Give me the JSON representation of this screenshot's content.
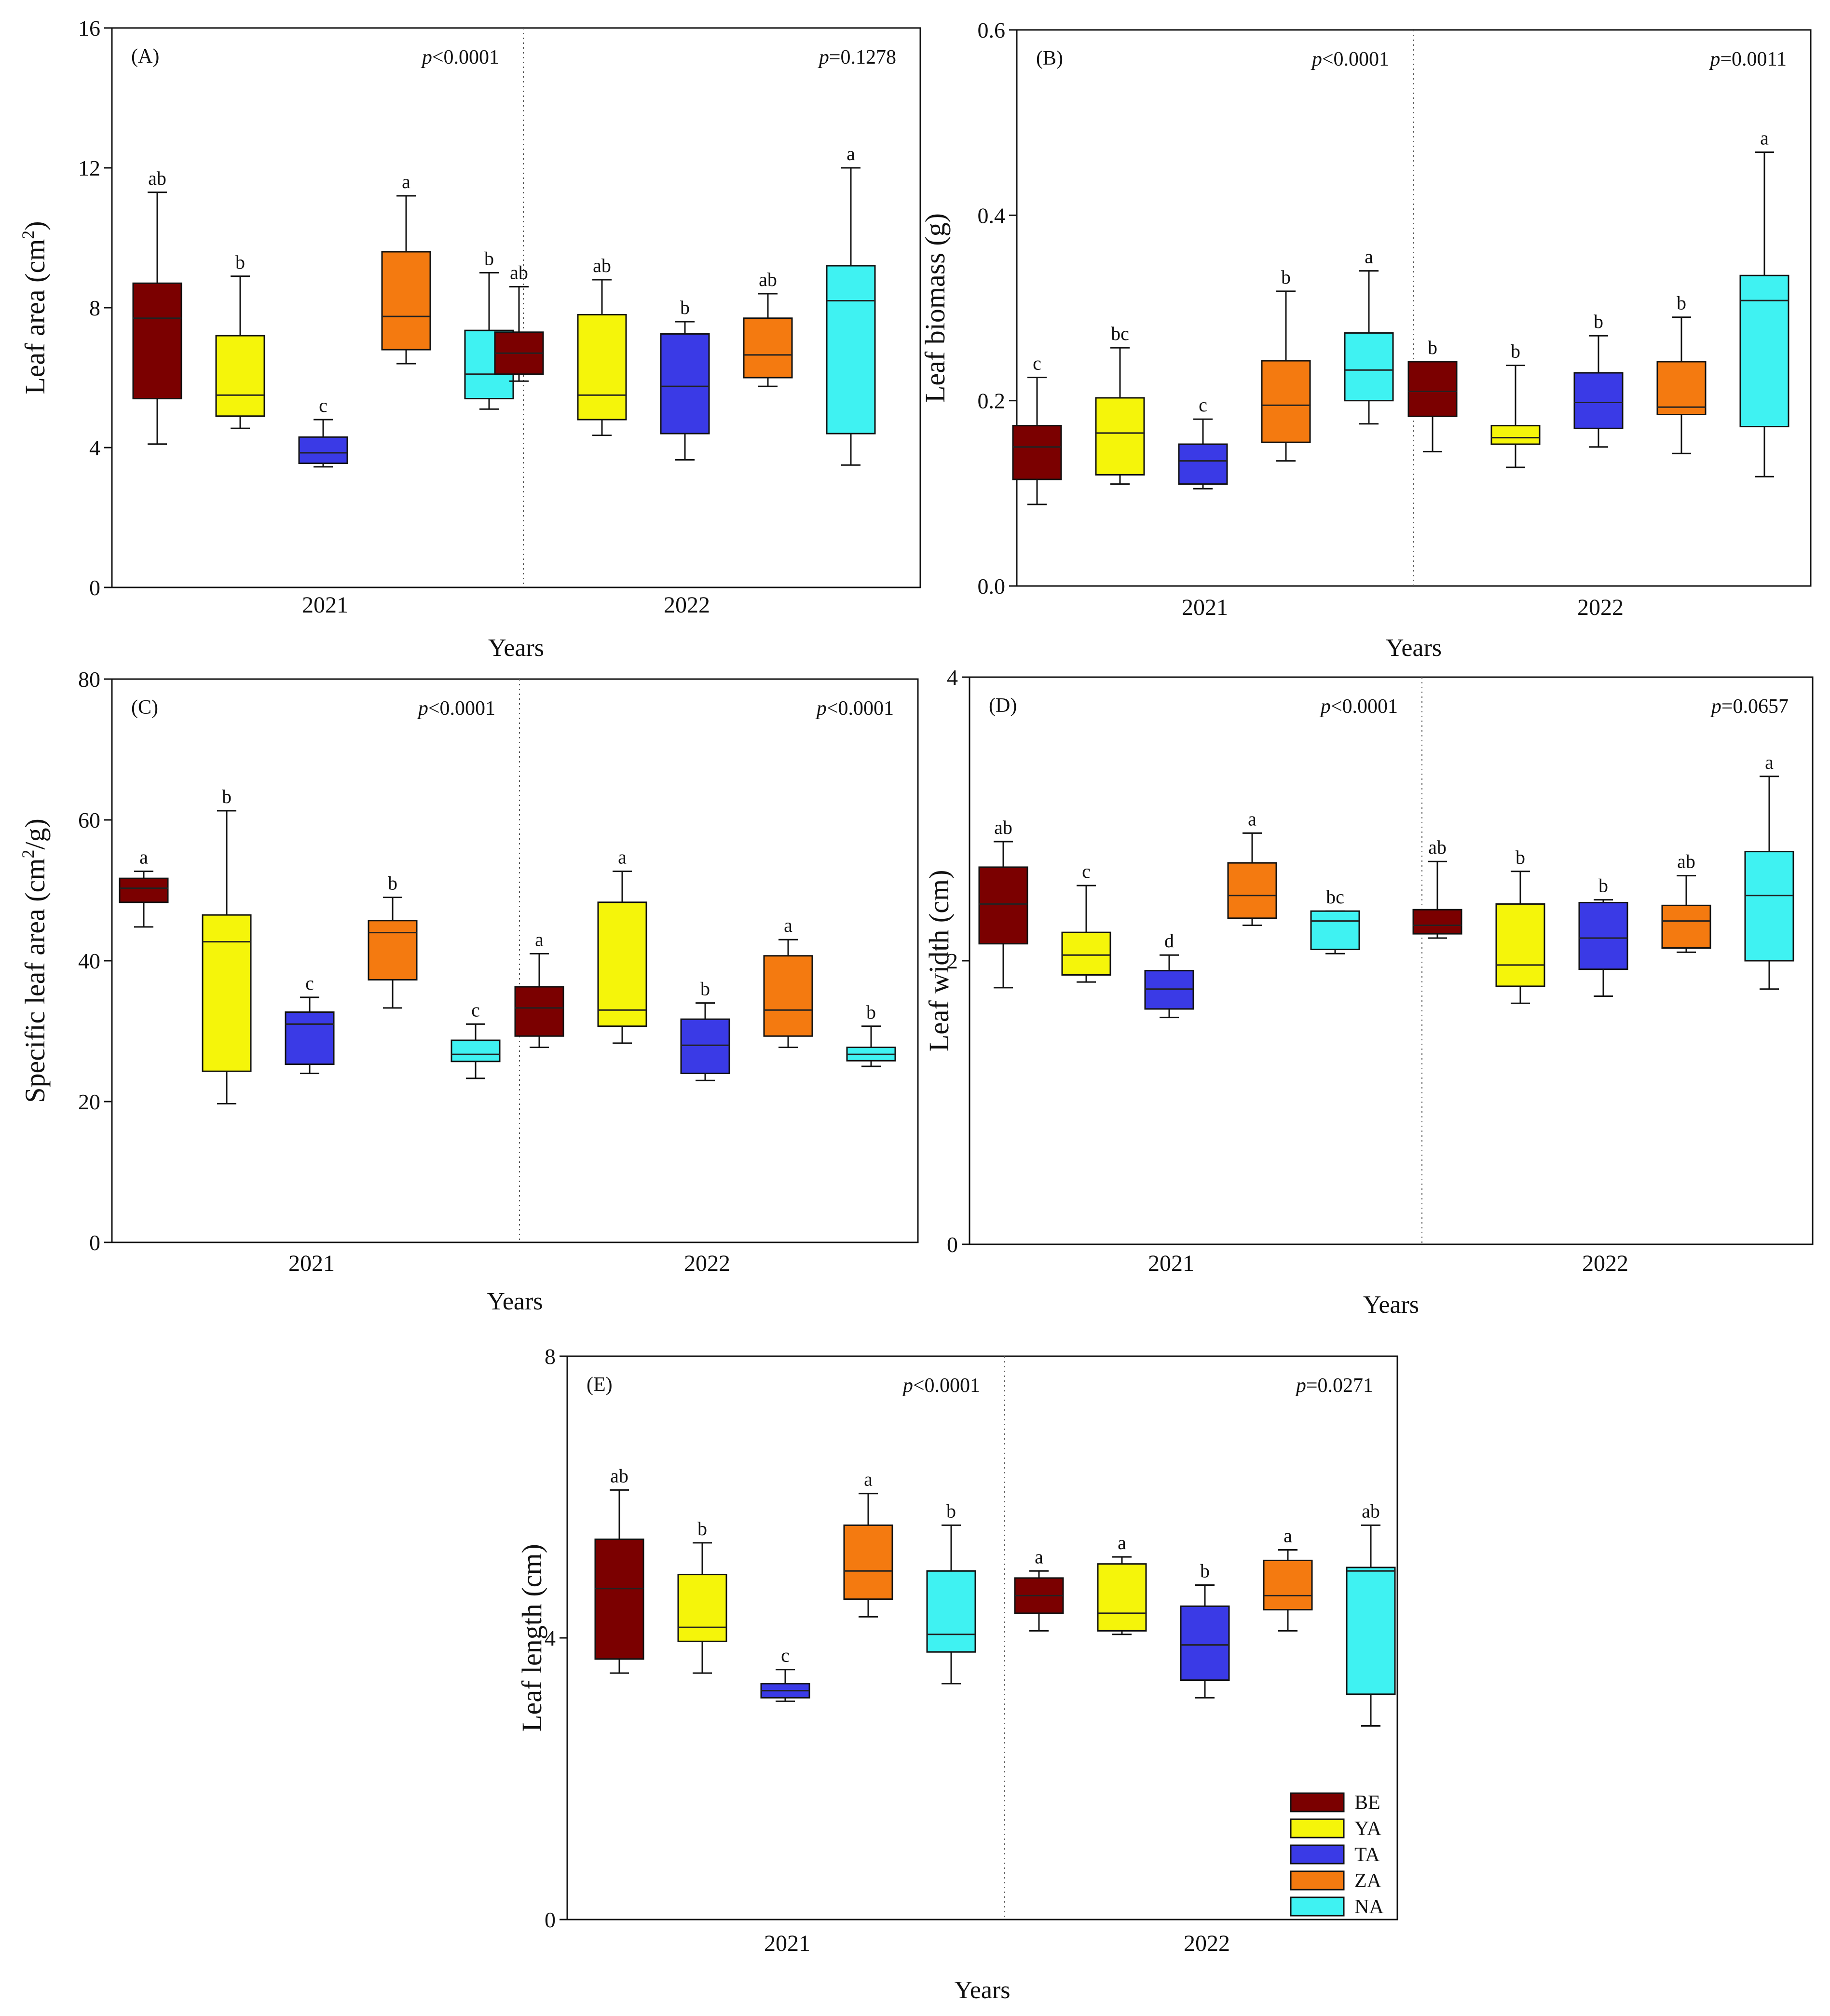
{
  "figure": {
    "legend": [
      {
        "name": "BE",
        "color": "#7b0000"
      },
      {
        "name": "YA",
        "color": "#f5f50a"
      },
      {
        "name": "TA",
        "color": "#3a3ae6"
      },
      {
        "name": "ZA",
        "color": "#f47a10"
      },
      {
        "name": "NA",
        "color": "#3ff2f2"
      }
    ]
  },
  "chart_data": [
    {
      "type": "box",
      "panel": "(A)",
      "ylabel": "Leaf area (cm²)",
      "ylabel_main": "Leaf area (cm",
      "ylabel_sup": "2",
      "ylabel_end": ")",
      "xlabel": "Years",
      "ylim": [
        0,
        16
      ],
      "yticks": [
        0,
        4,
        8,
        12,
        16
      ],
      "ytick_labels": [
        "0",
        "4",
        "8",
        "12",
        "16"
      ],
      "groups": [
        {
          "year": "2021",
          "pvalue": "p<0.0001",
          "pvalue_italic": "p",
          "pvalue_rest": "<0.0001",
          "boxes": [
            {
              "series": "BE",
              "min": 4.1,
              "q1": 5.4,
              "median": 7.7,
              "q3": 8.7,
              "max": 11.3,
              "letter": "ab"
            },
            {
              "series": "YA",
              "min": 4.55,
              "q1": 4.9,
              "median": 5.5,
              "q3": 7.2,
              "max": 8.9,
              "letter": "b"
            },
            {
              "series": "TA",
              "min": 3.45,
              "q1": 3.55,
              "median": 3.85,
              "q3": 4.3,
              "max": 4.8,
              "letter": "c"
            },
            {
              "series": "ZA",
              "min": 6.4,
              "q1": 6.8,
              "median": 7.75,
              "q3": 9.6,
              "max": 11.2,
              "letter": "a"
            },
            {
              "series": "NA",
              "min": 5.1,
              "q1": 5.4,
              "median": 6.1,
              "q3": 7.35,
              "max": 9.0,
              "letter": "b"
            }
          ]
        },
        {
          "year": "2022",
          "pvalue": "p=0.1278",
          "pvalue_italic": "p",
          "pvalue_rest": "=0.1278",
          "boxes": [
            {
              "series": "BE",
              "min": 5.9,
              "q1": 6.1,
              "median": 6.7,
              "q3": 7.3,
              "max": 8.6,
              "letter": "ab"
            },
            {
              "series": "YA",
              "min": 4.35,
              "q1": 4.8,
              "median": 5.5,
              "q3": 7.8,
              "max": 8.8,
              "letter": "ab"
            },
            {
              "series": "TA",
              "min": 3.65,
              "q1": 4.4,
              "median": 5.75,
              "q3": 7.25,
              "max": 7.6,
              "letter": "b"
            },
            {
              "series": "ZA",
              "min": 5.75,
              "q1": 6.0,
              "median": 6.65,
              "q3": 7.7,
              "max": 8.4,
              "letter": "ab"
            },
            {
              "series": "NA",
              "min": 3.5,
              "q1": 4.4,
              "median": 8.2,
              "q3": 9.2,
              "max": 12.0,
              "letter": "a"
            }
          ]
        }
      ]
    },
    {
      "type": "box",
      "panel": "(B)",
      "ylabel": "Leaf biomass (g)",
      "ylabel_main": "Leaf biomass (g)",
      "ylabel_sup": "",
      "ylabel_end": "",
      "xlabel": "Years",
      "ylim": [
        0,
        0.6
      ],
      "yticks": [
        0,
        0.2,
        0.4,
        0.6
      ],
      "ytick_labels": [
        "0.0",
        "0.2",
        "0.4",
        "0.6"
      ],
      "groups": [
        {
          "year": "2021",
          "pvalue": "p<0.0001",
          "pvalue_italic": "p",
          "pvalue_rest": "<0.0001",
          "boxes": [
            {
              "series": "BE",
              "min": 0.088,
              "q1": 0.115,
              "median": 0.15,
              "q3": 0.173,
              "max": 0.225,
              "letter": "c"
            },
            {
              "series": "YA",
              "min": 0.11,
              "q1": 0.12,
              "median": 0.165,
              "q3": 0.203,
              "max": 0.257,
              "letter": "bc"
            },
            {
              "series": "TA",
              "min": 0.105,
              "q1": 0.11,
              "median": 0.135,
              "q3": 0.153,
              "max": 0.18,
              "letter": "c"
            },
            {
              "series": "ZA",
              "min": 0.135,
              "q1": 0.155,
              "median": 0.195,
              "q3": 0.243,
              "max": 0.318,
              "letter": "b"
            },
            {
              "series": "NA",
              "min": 0.175,
              "q1": 0.2,
              "median": 0.233,
              "q3": 0.273,
              "max": 0.34,
              "letter": "a"
            }
          ]
        },
        {
          "year": "2022",
          "pvalue": "p=0.0011",
          "pvalue_italic": "p",
          "pvalue_rest": "=0.0011",
          "boxes": [
            {
              "series": "BE",
              "min": 0.145,
              "q1": 0.183,
              "median": 0.21,
              "q3": 0.242,
              "max": 0.242,
              "letter": "b"
            },
            {
              "series": "YA",
              "min": 0.128,
              "q1": 0.153,
              "median": 0.16,
              "q3": 0.173,
              "max": 0.238,
              "letter": "b"
            },
            {
              "series": "TA",
              "min": 0.15,
              "q1": 0.17,
              "median": 0.198,
              "q3": 0.23,
              "max": 0.27,
              "letter": "b"
            },
            {
              "series": "ZA",
              "min": 0.143,
              "q1": 0.185,
              "median": 0.193,
              "q3": 0.242,
              "max": 0.29,
              "letter": "b"
            },
            {
              "series": "NA",
              "min": 0.118,
              "q1": 0.172,
              "median": 0.308,
              "q3": 0.335,
              "max": 0.468,
              "letter": "a"
            }
          ]
        }
      ]
    },
    {
      "type": "box",
      "panel": "(C)",
      "ylabel": "Specific leaf area (cm²/g)",
      "ylabel_main": "Specific leaf area (cm",
      "ylabel_sup": "2",
      "ylabel_end": "/g)",
      "xlabel": "Years",
      "ylim": [
        0,
        80
      ],
      "yticks": [
        0,
        20,
        40,
        60,
        80
      ],
      "ytick_labels": [
        "0",
        "20",
        "40",
        "60",
        "80"
      ],
      "groups": [
        {
          "year": "2021",
          "pvalue": "p<0.0001",
          "pvalue_italic": "p",
          "pvalue_rest": "<0.0001",
          "boxes": [
            {
              "series": "BE",
              "min": 44.8,
              "q1": 48.3,
              "median": 50.3,
              "q3": 51.7,
              "max": 52.7,
              "letter": "a"
            },
            {
              "series": "YA",
              "min": 19.7,
              "q1": 24.3,
              "median": 42.7,
              "q3": 46.5,
              "max": 61.3,
              "letter": "b"
            },
            {
              "series": "TA",
              "min": 24.0,
              "q1": 25.3,
              "median": 31.0,
              "q3": 32.7,
              "max": 34.8,
              "letter": "c"
            },
            {
              "series": "ZA",
              "min": 33.3,
              "q1": 37.3,
              "median": 44.0,
              "q3": 45.7,
              "max": 49.0,
              "letter": "b"
            },
            {
              "series": "NA",
              "min": 23.3,
              "q1": 25.7,
              "median": 26.7,
              "q3": 28.7,
              "max": 31.0,
              "letter": "c"
            }
          ]
        },
        {
          "year": "2022",
          "pvalue": "p<0.0001",
          "pvalue_italic": "p",
          "pvalue_rest": "<0.0001",
          "boxes": [
            {
              "series": "BE",
              "min": 27.7,
              "q1": 29.3,
              "median": 33.3,
              "q3": 36.3,
              "max": 41.0,
              "letter": "a"
            },
            {
              "series": "YA",
              "min": 28.3,
              "q1": 30.7,
              "median": 33.0,
              "q3": 48.3,
              "max": 52.7,
              "letter": "a"
            },
            {
              "series": "TA",
              "min": 23.0,
              "q1": 24.0,
              "median": 28.0,
              "q3": 31.7,
              "max": 34.0,
              "letter": "b"
            },
            {
              "series": "ZA",
              "min": 27.7,
              "q1": 29.3,
              "median": 33.0,
              "q3": 40.7,
              "max": 43.0,
              "letter": "a"
            },
            {
              "series": "NA",
              "min": 25.0,
              "q1": 25.8,
              "median": 26.7,
              "q3": 27.7,
              "max": 30.7,
              "letter": "b"
            }
          ]
        }
      ]
    },
    {
      "type": "box",
      "panel": "(D)",
      "ylabel": "Leaf width (cm)",
      "ylabel_main": "Leaf width (cm)",
      "ylabel_sup": "",
      "ylabel_end": "",
      "xlabel": "Years",
      "ylim": [
        0,
        4
      ],
      "yticks": [
        0,
        2,
        4
      ],
      "ytick_labels": [
        "0",
        "2",
        "4"
      ],
      "groups": [
        {
          "year": "2021",
          "pvalue": "p<0.0001",
          "pvalue_italic": "p",
          "pvalue_rest": "<0.0001",
          "boxes": [
            {
              "series": "BE",
              "min": 1.81,
              "q1": 2.12,
              "median": 2.4,
              "q3": 2.66,
              "max": 2.84,
              "letter": "ab"
            },
            {
              "series": "YA",
              "min": 1.85,
              "q1": 1.9,
              "median": 2.04,
              "q3": 2.2,
              "max": 2.53,
              "letter": "c"
            },
            {
              "series": "TA",
              "min": 1.6,
              "q1": 1.66,
              "median": 1.8,
              "q3": 1.93,
              "max": 2.04,
              "letter": "d"
            },
            {
              "series": "ZA",
              "min": 2.25,
              "q1": 2.3,
              "median": 2.46,
              "q3": 2.69,
              "max": 2.9,
              "letter": "a"
            },
            {
              "series": "NA",
              "min": 2.05,
              "q1": 2.08,
              "median": 2.28,
              "q3": 2.35,
              "max": 2.35,
              "letter": "bc"
            }
          ]
        },
        {
          "year": "2022",
          "pvalue": "p=0.0657",
          "pvalue_italic": "p",
          "pvalue_rest": "=0.0657",
          "boxes": [
            {
              "series": "BE",
              "min": 2.16,
              "q1": 2.19,
              "median": 2.25,
              "q3": 2.36,
              "max": 2.7,
              "letter": "ab"
            },
            {
              "series": "YA",
              "min": 1.7,
              "q1": 1.82,
              "median": 1.97,
              "q3": 2.4,
              "max": 2.63,
              "letter": "b"
            },
            {
              "series": "TA",
              "min": 1.75,
              "q1": 1.94,
              "median": 2.16,
              "q3": 2.41,
              "max": 2.43,
              "letter": "b"
            },
            {
              "series": "ZA",
              "min": 2.06,
              "q1": 2.09,
              "median": 2.28,
              "q3": 2.39,
              "max": 2.6,
              "letter": "ab"
            },
            {
              "series": "NA",
              "min": 1.8,
              "q1": 2.0,
              "median": 2.46,
              "q3": 2.77,
              "max": 3.3,
              "letter": "a"
            }
          ]
        }
      ]
    },
    {
      "type": "box",
      "panel": "(E)",
      "ylabel": "Leaf length (cm)",
      "ylabel_main": "Leaf length (cm)",
      "ylabel_sup": "",
      "ylabel_end": "",
      "xlabel": "Years",
      "ylim": [
        0,
        8
      ],
      "yticks": [
        0,
        4,
        8
      ],
      "ytick_labels": [
        "0",
        "4",
        "8"
      ],
      "groups": [
        {
          "year": "2021",
          "pvalue": "p<0.0001",
          "pvalue_italic": "p",
          "pvalue_rest": "<0.0001",
          "boxes": [
            {
              "series": "BE",
              "min": 3.5,
              "q1": 3.7,
              "median": 4.7,
              "q3": 5.4,
              "max": 6.1,
              "letter": "ab"
            },
            {
              "series": "YA",
              "min": 3.5,
              "q1": 3.95,
              "median": 4.15,
              "q3": 4.9,
              "max": 5.35,
              "letter": "b"
            },
            {
              "series": "TA",
              "min": 3.1,
              "q1": 3.15,
              "median": 3.25,
              "q3": 3.35,
              "max": 3.55,
              "letter": "c"
            },
            {
              "series": "ZA",
              "min": 4.3,
              "q1": 4.55,
              "median": 4.95,
              "q3": 5.6,
              "max": 6.05,
              "letter": "a"
            },
            {
              "series": "NA",
              "min": 3.35,
              "q1": 3.8,
              "median": 4.05,
              "q3": 4.95,
              "max": 5.6,
              "letter": "b"
            }
          ]
        },
        {
          "year": "2022",
          "pvalue": "p=0.0271",
          "pvalue_italic": "p",
          "pvalue_rest": "=0.0271",
          "boxes": [
            {
              "series": "BE",
              "min": 4.1,
              "q1": 4.35,
              "median": 4.6,
              "q3": 4.85,
              "max": 4.95,
              "letter": "a"
            },
            {
              "series": "YA",
              "min": 4.05,
              "q1": 4.1,
              "median": 4.35,
              "q3": 5.05,
              "max": 5.15,
              "letter": "a"
            },
            {
              "series": "TA",
              "min": 3.15,
              "q1": 3.4,
              "median": 3.9,
              "q3": 4.45,
              "max": 4.75,
              "letter": "b"
            },
            {
              "series": "ZA",
              "min": 4.1,
              "q1": 4.4,
              "median": 4.6,
              "q3": 5.1,
              "max": 5.25,
              "letter": "a"
            },
            {
              "series": "NA",
              "min": 2.75,
              "q1": 3.2,
              "median": 4.95,
              "q3": 5.0,
              "max": 5.6,
              "letter": "ab"
            }
          ]
        }
      ]
    }
  ]
}
